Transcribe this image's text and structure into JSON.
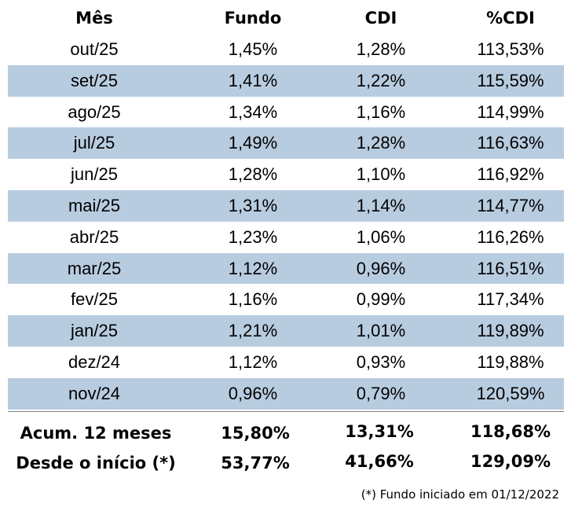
{
  "table": {
    "header": [
      "Mês",
      "Fundo",
      "CDI",
      "%CDI"
    ],
    "rows": [
      [
        "out/25",
        "1,45%",
        "1,28%",
        "113,53%"
      ],
      [
        "set/25",
        "1,41%",
        "1,22%",
        "115,59%"
      ],
      [
        "ago/25",
        "1,34%",
        "1,16%",
        "114,99%"
      ],
      [
        "jul/25",
        "1,49%",
        "1,28%",
        "116,63%"
      ],
      [
        "jun/25",
        "1,28%",
        "1,10%",
        "116,92%"
      ],
      [
        "mai/25",
        "1,31%",
        "1,14%",
        "114,77%"
      ],
      [
        "abr/25",
        "1,23%",
        "1,06%",
        "116,26%"
      ],
      [
        "mar/25",
        "1,12%",
        "0,96%",
        "116,51%"
      ],
      [
        "fev/25",
        "1,16%",
        "0,99%",
        "117,34%"
      ],
      [
        "jan/25",
        "1,21%",
        "1,01%",
        "119,89%"
      ],
      [
        "dez/24",
        "1,12%",
        "0,93%",
        "119,88%"
      ],
      [
        "nov/24",
        "0,96%",
        "0,79%",
        "120,59%"
      ]
    ],
    "summary": [
      [
        "Acum. 12 meses",
        "15,80%",
        "13,31%",
        "118,68%"
      ],
      [
        "Desde o início (*)",
        "53,77%",
        "41,66%",
        "129,09%"
      ]
    ]
  },
  "footnote": "(*) Fundo iniciado em 01/12/2022"
}
